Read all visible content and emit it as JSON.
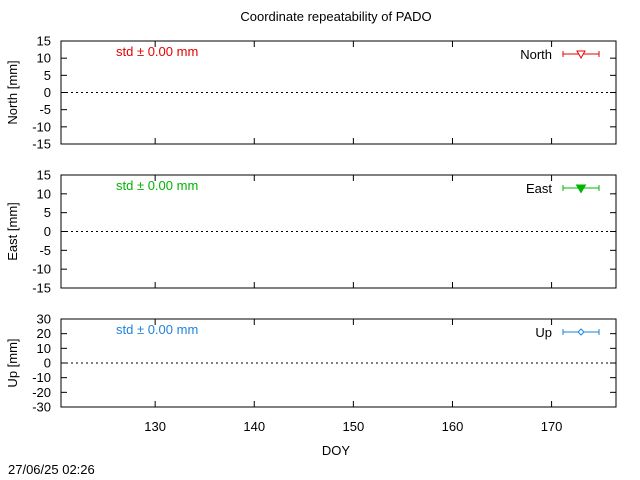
{
  "title": "Coordinate repeatability of PADO",
  "timestamp": "27/06/25 02:26",
  "chart_data": {
    "type": "line",
    "title": "Coordinate repeatability of PADO",
    "xlabel": "DOY",
    "xlim": [
      120.5,
      176.5
    ],
    "xticks": [
      130,
      140,
      150,
      160,
      170
    ],
    "panels": [
      {
        "key": "north",
        "ylabel": "North [mm]",
        "ylim": [
          -15,
          15
        ],
        "yticks": [
          15,
          10,
          5,
          0,
          -5,
          -10,
          -15
        ],
        "std_text": "std ± 0.00 mm",
        "legend": "North",
        "color": "#e60000",
        "marker": "triangle-down-open",
        "values": []
      },
      {
        "key": "east",
        "ylabel": "East [mm]",
        "ylim": [
          -15,
          15
        ],
        "yticks": [
          15,
          10,
          5,
          0,
          -5,
          -10,
          -15
        ],
        "std_text": "std ± 0.00 mm",
        "legend": "East",
        "color": "#00b400",
        "marker": "triangle-down-filled",
        "values": []
      },
      {
        "key": "up",
        "ylabel": "Up [mm]",
        "ylim": [
          -30,
          30
        ],
        "yticks": [
          30,
          20,
          10,
          0,
          -10,
          -20,
          -30
        ],
        "std_text": "std ± 0.00 mm",
        "legend": "Up",
        "color": "#1e82dc",
        "marker": "diamond-open",
        "values": []
      }
    ]
  }
}
